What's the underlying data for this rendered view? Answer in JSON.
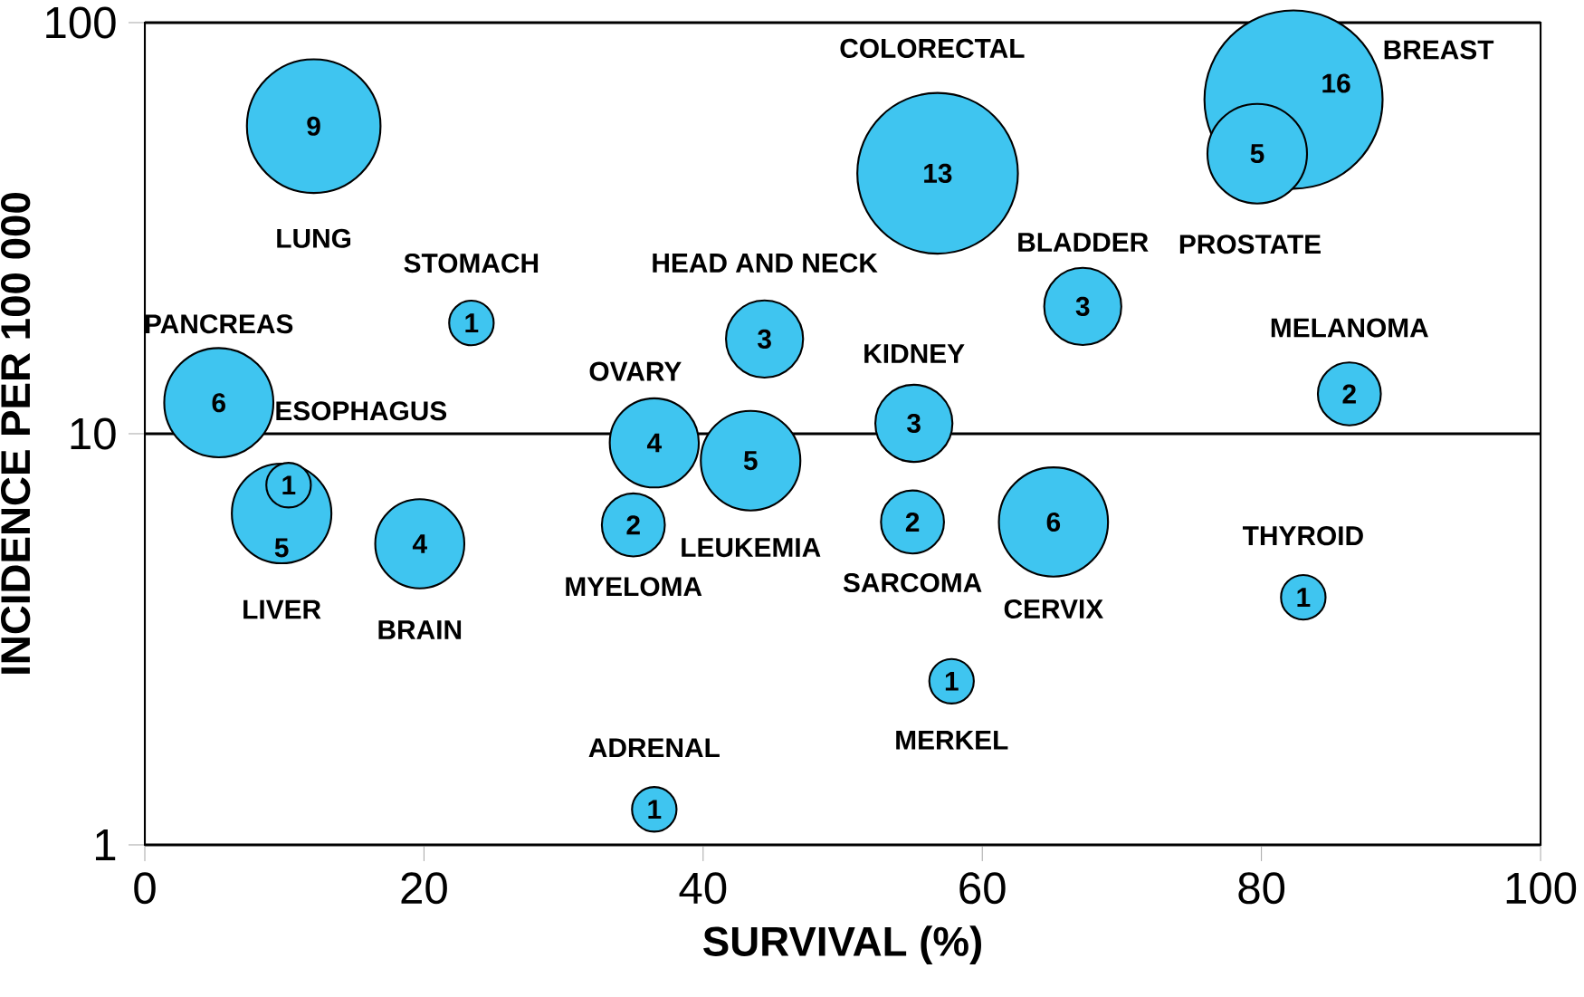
{
  "chart_data": {
    "type": "bubble",
    "xlabel": "SURVIVAL (%)",
    "ylabel": "INCIDENCE PER 100 000",
    "x": [
      12.1,
      23.4,
      5.3,
      9.8,
      10.3,
      19.7,
      36.5,
      35.0,
      44.4,
      43.4,
      36.5,
      56.8,
      55.1,
      55.0,
      57.8,
      65.1,
      67.2,
      82.3,
      79.7,
      86.3,
      83.0
    ],
    "values": [
      56,
      18.6,
      11.9,
      6.4,
      7.5,
      5.4,
      9.5,
      6.0,
      17,
      8.6,
      1.22,
      43,
      10.6,
      6.1,
      2.5,
      6.1,
      20.4,
      65,
      48,
      12.5,
      4.0
    ],
    "sizes": [
      9,
      1,
      6,
      5,
      1,
      4,
      4,
      2,
      3,
      5,
      1,
      13,
      3,
      2,
      1,
      6,
      3,
      16,
      5,
      2,
      1
    ],
    "value_labels": [
      "9",
      "1",
      "6",
      "5",
      "1",
      "4",
      "4",
      "2",
      "3",
      "5",
      "1",
      "13",
      "3",
      "2",
      "1",
      "6",
      "3",
      "16",
      "5",
      "2",
      "1"
    ],
    "color": "#3fc5f0",
    "log": "y",
    "grid": "y",
    "xlim": [
      0,
      100
    ],
    "xticks": [
      0,
      20,
      40,
      60,
      80,
      100
    ],
    "ylim": [
      1,
      100
    ],
    "yticks": [
      1,
      10,
      100
    ],
    "annotations": [
      "LUNG",
      {
        "text": "STOMACH",
        "x": 23.4,
        "y": 18.6
      },
      {
        "text": "PANCREAS",
        "x": 5.3,
        "y": 11.9
      },
      "LIVER",
      {
        "text": "ESOPHAGUS",
        "x": 10.3,
        "y": 7.5
      },
      {
        "text": "BRAIN",
        "x": 19.7,
        "y": 5.4
      },
      {
        "text": "OVARY",
        "x": 36.5,
        "y": 9.5
      },
      {
        "text": "MYELOMA",
        "x": 35.0,
        "y": 6.0
      },
      {
        "text": "HEAD AND NECK",
        "x": 44.4,
        "y": 17
      },
      {
        "text": "LEUKEMIA",
        "x": 43.4,
        "y": 8.6
      },
      {
        "text": "ADRENAL",
        "x": 36.5,
        "y": 1.22
      },
      "COLORECTAL",
      {
        "text": "KIDNEY",
        "x": 55.1,
        "y": 10.6
      },
      {
        "text": "SARCOMA",
        "x": 55.0,
        "y": 6.1
      },
      {
        "text": "MERKEL",
        "x": 57.8,
        "y": 2.5
      },
      {
        "text": "CERVIX",
        "x": 65.1,
        "y": 6.1
      },
      {
        "text": "BLADDER",
        "x": 67.2,
        "y": 20.4
      },
      "BREAST",
      {
        "text": "PROSTATE",
        "x": 79.7,
        "y": 48
      },
      {
        "text": "MELANOMA",
        "x": 86.3,
        "y": 12.5
      },
      {
        "text": "THYROID",
        "x": 83.0,
        "y": 4.0
      }
    ]
  }
}
